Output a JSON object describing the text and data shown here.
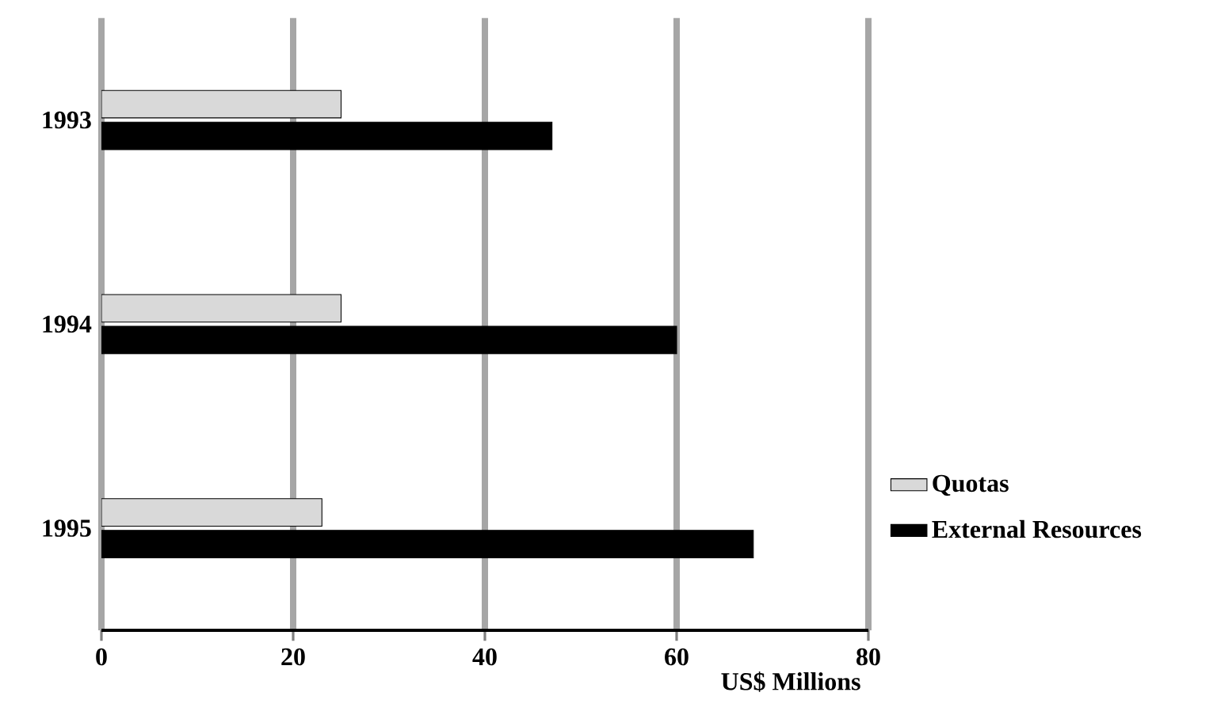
{
  "chart_data": {
    "type": "bar",
    "orientation": "horizontal",
    "xlabel": "US$ Millions",
    "categories": [
      "1993",
      "1994",
      "1995"
    ],
    "series": [
      {
        "name": "Quotas",
        "color": "#d9d9d9",
        "values": [
          25,
          25,
          23
        ]
      },
      {
        "name": "External Resources",
        "color": "#000000",
        "values": [
          47,
          60,
          68
        ]
      }
    ],
    "xlim": [
      0,
      80
    ],
    "xticks": [
      0,
      20,
      40,
      60,
      80
    ],
    "grid": "x",
    "legend": "right"
  }
}
